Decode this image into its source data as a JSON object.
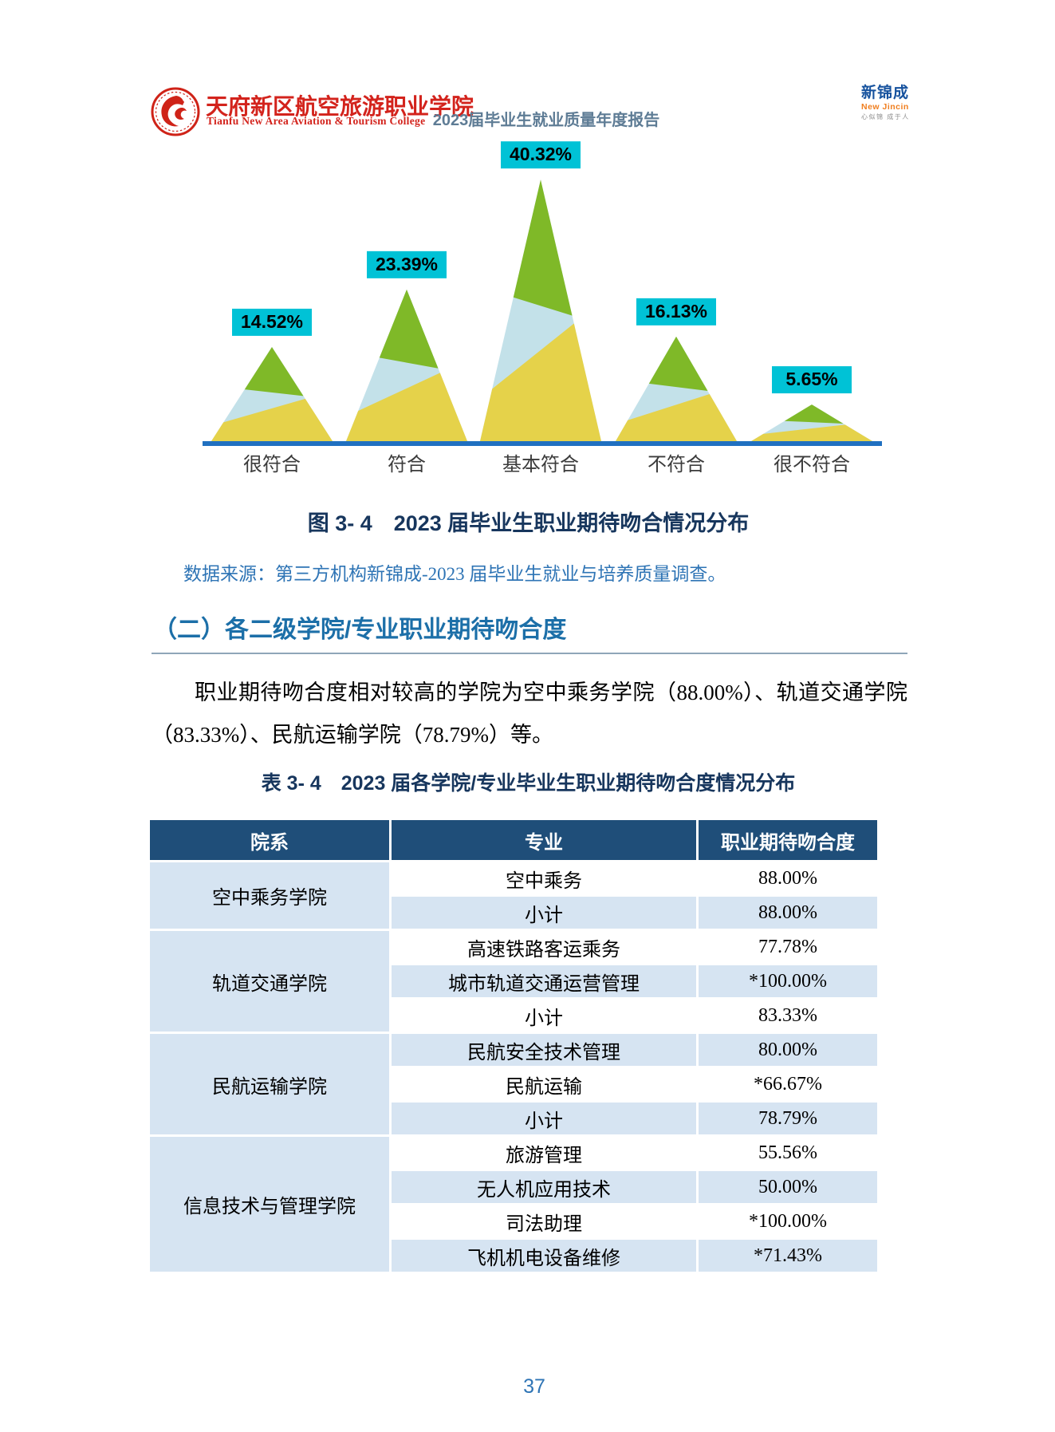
{
  "header": {
    "college_name_zh": "天府新区航空旅游职业学院",
    "college_name_en": "Tianfu New Area Aviation & Tourism College",
    "report_title": "2023届毕业生就业质量年度报告",
    "brand_zh": "新锦成",
    "brand_en": "New Jincin",
    "brand_slogan": "心似锦 成于人"
  },
  "chart_data": {
    "type": "area",
    "variant": "triangle-peaks",
    "categories": [
      "很符合",
      "符合",
      "基本符合",
      "不符合",
      "很不符合"
    ],
    "values": [
      14.52,
      23.39,
      40.32,
      16.13,
      5.65
    ],
    "data_labels": [
      "14.52%",
      "23.39%",
      "40.32%",
      "16.13%",
      "5.65%"
    ],
    "title": "2023届毕业生职业期待吻合情况分布",
    "xlabel": "",
    "ylabel": "",
    "ylim": [
      0,
      42
    ],
    "legend": "none",
    "grid": false,
    "colors": {
      "band_bottom": "#E5D24A",
      "band_middle": "#C3E1E9",
      "band_top": "#7FB928",
      "label_bg": "#00C2D6",
      "label_text": "#000000",
      "axis": "#2070C0",
      "category_text": "#3B3B3B"
    }
  },
  "figure_caption": "图 3- 4　2023 届毕业生职业期待吻合情况分布",
  "data_source": "数据来源：第三方机构新锦成-2023 届毕业生就业与培养质量调查。",
  "section_heading": "（二）各二级学院/专业职业期待吻合度",
  "paragraph": "职业期待吻合度相对较高的学院为空中乘务学院（88.00%）、轨道交通学院（83.33%）、民航运输学院（78.79%）等。",
  "table": {
    "caption": "表 3- 4　2023 届各学院/专业毕业生职业期待吻合度情况分布",
    "headers": [
      "院系",
      "专业",
      "职业期待吻合度"
    ],
    "groups": [
      {
        "college": "空中乘务学院",
        "rows": [
          {
            "major": "空中乘务",
            "value": "88.00%"
          },
          {
            "major": "小计",
            "value": "88.00%"
          }
        ]
      },
      {
        "college": "轨道交通学院",
        "rows": [
          {
            "major": "高速铁路客运乘务",
            "value": "77.78%"
          },
          {
            "major": "城市轨道交通运营管理",
            "value": "*100.00%"
          },
          {
            "major": "小计",
            "value": "83.33%"
          }
        ]
      },
      {
        "college": "民航运输学院",
        "rows": [
          {
            "major": "民航安全技术管理",
            "value": "80.00%"
          },
          {
            "major": "民航运输",
            "value": "*66.67%"
          },
          {
            "major": "小计",
            "value": "78.79%"
          }
        ]
      },
      {
        "college": "信息技术与管理学院",
        "rows": [
          {
            "major": "旅游管理",
            "value": "55.56%"
          },
          {
            "major": "无人机应用技术",
            "value": "50.00%"
          },
          {
            "major": "司法助理",
            "value": "*100.00%"
          },
          {
            "major": "飞机机电设备维修",
            "value": "*71.43%"
          }
        ]
      }
    ]
  },
  "page": {
    "number": "37"
  }
}
